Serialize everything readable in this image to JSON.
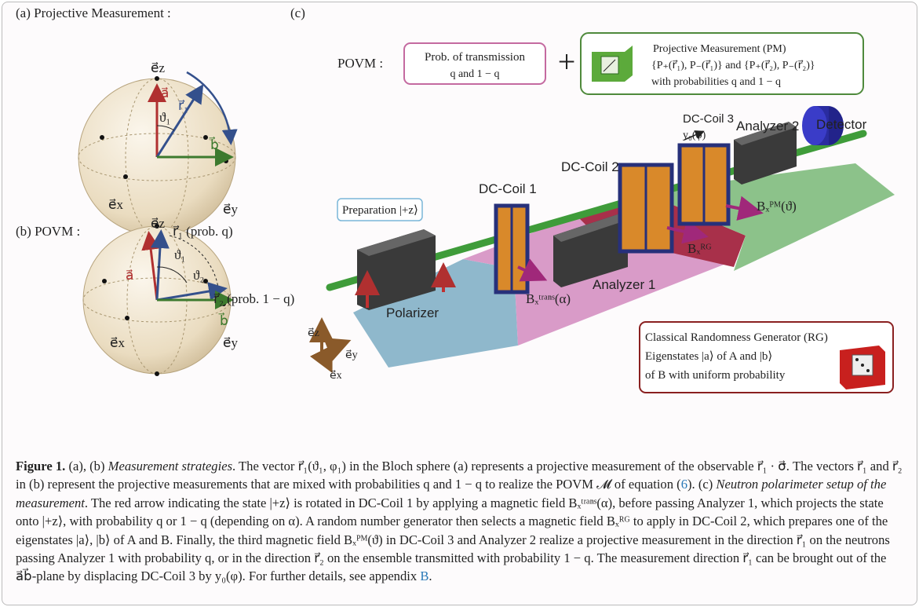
{
  "panel_a": {
    "title": "(a) Projective Measurement :",
    "ez": "e⃗z",
    "a": "a⃗",
    "r1": "r⃗₁",
    "theta1": "ϑ₁",
    "b": "b⃗",
    "ex": "e⃗x",
    "ey": "e⃗y"
  },
  "panel_b": {
    "title": "(b) POVM :",
    "ez": "e⃗z",
    "r1": "r⃗₁ (prob. q)",
    "theta1": "ϑ₁",
    "theta2": "ϑ₂",
    "a": "a⃗",
    "r2": "r⃗₂ (prob. 1 − q)",
    "b": "b⃗",
    "ex": "e⃗x",
    "ey": "e⃗y"
  },
  "panel_c": {
    "title": "(c)",
    "povm": "POVM :",
    "transmission_box": [
      "Prob. of transmission",
      "q and 1 − q"
    ],
    "plus": "+",
    "pm_box": [
      "Projective Measurement (PM)",
      "{P₊(r⃗₁), P₋(r⃗₁)} and {P₊(r⃗₂), P₋(r⃗₂)}",
      "with probabilities q and 1 − q"
    ],
    "preparation": "Preparation |+z⟩",
    "polarizer": "Polarizer",
    "coil1": "DC-Coil 1",
    "field_trans": "Bₓᵗʳᵃⁿˢ(α)",
    "analyzer1": "Analyzer 1",
    "coil2": "DC-Coil 2",
    "field_rg": "Bₓᴿᴳ",
    "coil3": "DC-Coil 3",
    "shift": "y₀(φ)",
    "field_pm": "Bₓᴾᴹ(ϑ)",
    "analyzer2": "Analyzer 2",
    "detector": "Detector",
    "axis_z": "e⃗z",
    "axis_y": "e⃗y",
    "axis_x": "e⃗x",
    "rg_box": [
      "Classical Randomness Generator (RG)",
      "Eigenstates |a⟩ of A and |b⟩",
      "of B with uniform probability"
    ]
  },
  "caption": [
    "Figure 1.",
    " (a), (b) ",
    "Measurement strategies",
    ". The vector r⃗₁(ϑ₁, φ₁) in the Bloch sphere (a) represents a projective measurement of the observable r⃗₁ · σ⃗. The vectors r⃗₁ and r⃗₂ in (b) represent the projective measurements that are mixed with probabilities q and 1 − q to realize the POVM 𝓜 of equation (",
    "6",
    "). (c) ",
    "Neutron polarimeter setup of the measurement",
    ". The red arrow indicating the state |+z⟩ is rotated in DC-Coil 1 by applying a magnetic field Bₓᵗʳᵃⁿˢ(α), before passing Analyzer 1, which projects the state onto |+z⟩, with probability q or 1 − q (depending on α). A random number generator then selects a magnetic field Bₓᴿᴳ to apply in DC-Coil 2, which prepares one of the eigenstates |a⟩, |b⟩ of A and B. Finally, the third magnetic field Bₓᴾᴹ(ϑ) in DC-Coil 3 and Analyzer 2 realize a projective measurement in the direction r⃗₁ on the neutrons passing Analyzer 1 with probability q, or in the direction r⃗₂ on the ensemble transmitted with probability 1 − q. The measurement direction r⃗₁ can be brought out of the a⃗b⃗-plane by displacing DC-Coil 3 by y₀(φ). For further details, see appendix ",
    "B",
    "."
  ]
}
